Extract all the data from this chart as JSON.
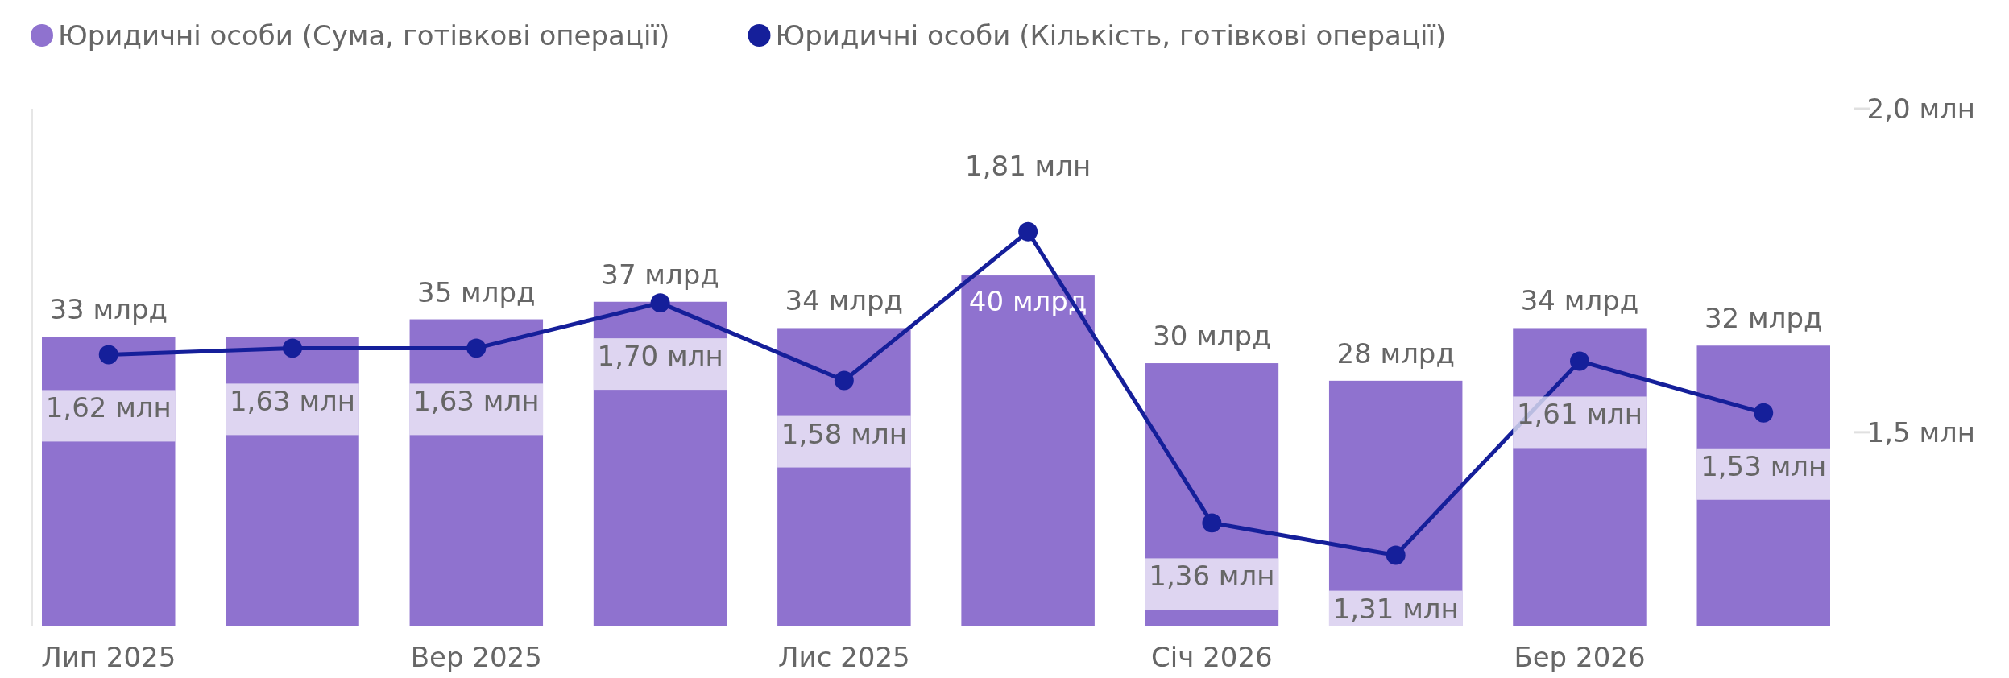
{
  "chart_data": {
    "type": "bar",
    "categories": [
      "Лип 2025",
      null,
      "Вер 2025",
      null,
      "Лис 2025",
      null,
      "Січ 2026",
      null,
      "Бер 2026",
      null
    ],
    "series": [
      {
        "name": "Юридичні особи (Сума, готівкові операції)",
        "color": "#8f72cf",
        "values": [
          33,
          33,
          35,
          37,
          34,
          40,
          30,
          28,
          34,
          32
        ],
        "value_labels": [
          "33 млрд",
          null,
          "35 млрд",
          "37 млрд",
          "34 млрд",
          "40 млрд",
          "30 млрд",
          "28 млрд",
          "34 млрд",
          "32 млрд"
        ]
      },
      {
        "name": "Юридичні особи (Кількість, готівкові операції)",
        "type": "line",
        "axis": "y2",
        "color": "#151f9a",
        "values": [
          1.62,
          1.63,
          1.63,
          1.7,
          1.58,
          1.81,
          1.36,
          1.31,
          1.61,
          1.53
        ],
        "value_labels": [
          "1,62 млн",
          "1,63 млн",
          "1,63 млн",
          "1,70 млн",
          "1,58 млн",
          "1,81 млн",
          "1,36 млн",
          "1,31 млн",
          "1,61 млн",
          "1,53 млн"
        ]
      }
    ],
    "ylim": [
      0,
      59
    ],
    "y2lim": [
      1.2,
      2.0
    ],
    "y2ticks": [
      {
        "value": 1.5,
        "label": "1,5 млн"
      },
      {
        "value": 2.0,
        "label": "2,0 млн"
      }
    ],
    "legend": "top left",
    "marker": "circle",
    "line_style": "solid"
  }
}
